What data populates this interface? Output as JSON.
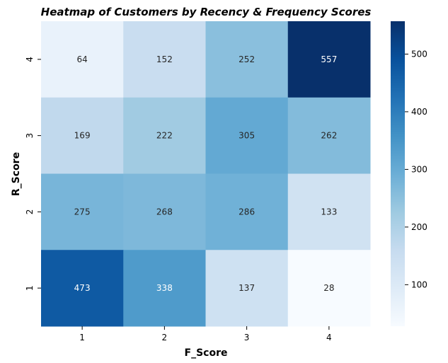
{
  "chart_data": {
    "type": "heatmap",
    "title": "Heatmap of Customers by Recency & Frequency Scores",
    "xlabel": "F_Score",
    "ylabel": "R_Score",
    "x_categories": [
      "1",
      "2",
      "3",
      "4"
    ],
    "y_categories": [
      "4",
      "3",
      "2",
      "1"
    ],
    "values": [
      [
        64,
        152,
        252,
        557
      ],
      [
        169,
        222,
        305,
        262
      ],
      [
        275,
        268,
        286,
        133
      ],
      [
        473,
        338,
        137,
        28
      ]
    ],
    "colorbar": {
      "min": 28,
      "max": 557,
      "ticks": [
        100,
        200,
        300,
        400,
        500
      ],
      "colormap": "Blues"
    },
    "colors": {
      "low": "#f7fbff",
      "high": "#08306b"
    }
  }
}
